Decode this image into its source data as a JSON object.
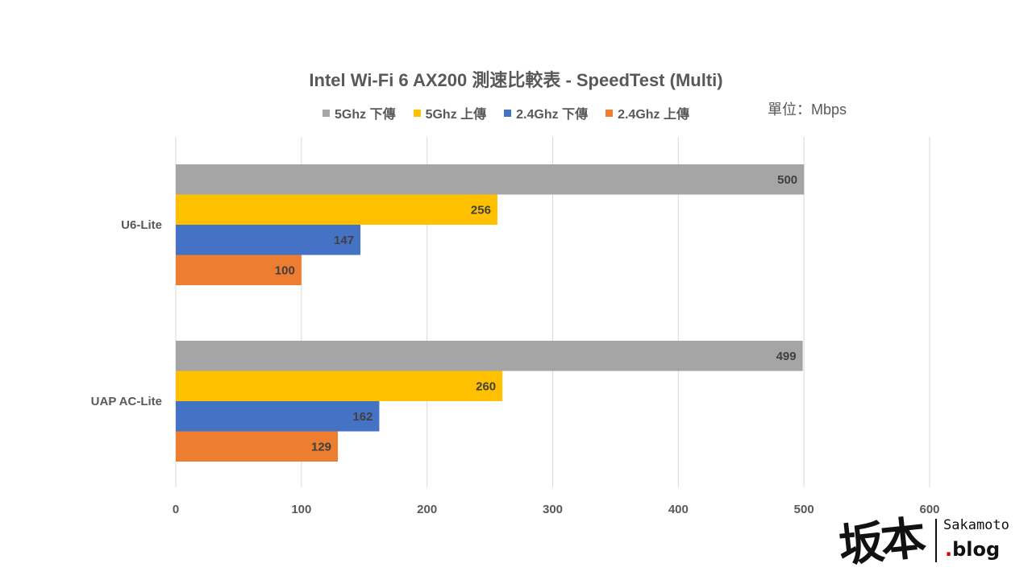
{
  "chart_data": {
    "type": "bar",
    "orientation": "horizontal",
    "title": "Intel Wi-Fi 6 AX200 測速比較表 - SpeedTest (Multi)",
    "unit_label": "單位：Mbps",
    "categories": [
      "U6-Lite",
      "UAP AC-Lite"
    ],
    "series": [
      {
        "name": "5Ghz 下傳",
        "color": "#a5a5a5",
        "values": [
          500,
          499
        ]
      },
      {
        "name": "5Ghz 上傳",
        "color": "#ffc000",
        "values": [
          256,
          260
        ]
      },
      {
        "name": "2.4Ghz 下傳",
        "color": "#4472c4",
        "values": [
          147,
          162
        ]
      },
      {
        "name": "2.4Ghz 上傳",
        "color": "#ed7d31",
        "values": [
          100,
          129
        ]
      }
    ],
    "xlim": [
      0,
      600
    ],
    "xticks": [
      0,
      100,
      200,
      300,
      400,
      500,
      600
    ],
    "grid": true,
    "legend_position": "top"
  },
  "watermark": {
    "kanji": "坂本",
    "name": "Sakamoto",
    "dot": ".",
    "blog": "blog"
  }
}
